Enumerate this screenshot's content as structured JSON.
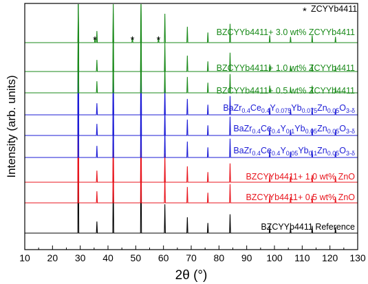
{
  "chart_data": {
    "type": "line",
    "xlabel": "2θ (°)",
    "ylabel": "Intensity (arb. units)",
    "xlim": [
      10,
      130
    ],
    "x_ticks": [
      10,
      20,
      30,
      40,
      50,
      60,
      70,
      80,
      90,
      100,
      110,
      120,
      130
    ],
    "grid": false,
    "legend": {
      "marker": "*",
      "text": "ZCYYb4411",
      "placement": "top-right"
    },
    "annotations": [
      {
        "text": "*",
        "x": 35.3
      },
      {
        "text": "*",
        "x": 48.8
      },
      {
        "text": "*",
        "x": 58.2
      }
    ],
    "peaks_2theta": [
      29.3,
      36.0,
      41.9,
      51.9,
      60.5,
      68.6,
      76.0,
      84.0,
      98.3,
      105.8,
      113.6,
      122.0
    ],
    "series": [
      {
        "name": "BZCYYb4411 Reference",
        "color": "#000000",
        "label_parts": [
          {
            "t": "BZCYYb4411 Reference"
          }
        ],
        "peak_heights": [
          1.0,
          0.08,
          0.4,
          0.62,
          0.2,
          0.11,
          0.07,
          0.13,
          0.05,
          0.04,
          0.05,
          0.04
        ]
      },
      {
        "name": "BZCYYb4411+ 0.5 wt% ZnO",
        "color": "#e8141c",
        "label_parts": [
          {
            "t": "BZCYYb4411+ 0.5 wt% ZnO"
          }
        ],
        "peak_heights": [
          1.0,
          0.08,
          0.4,
          0.62,
          0.2,
          0.11,
          0.07,
          0.13,
          0.05,
          0.04,
          0.05,
          0.04
        ]
      },
      {
        "name": "BZCYYb4411+ 1.0 wt% ZnO",
        "color": "#e8141c",
        "label_parts": [
          {
            "t": "BZCYYb4411+ 1.0 wt% ZnO"
          }
        ],
        "peak_heights": [
          1.0,
          0.08,
          0.4,
          0.62,
          0.2,
          0.11,
          0.07,
          0.13,
          0.05,
          0.04,
          0.05,
          0.04
        ]
      },
      {
        "name": "BaZr0.4Ce0.4Y0.05Yb0.1Zn0.05O3-δ",
        "color": "#1b1bd6",
        "label_parts": [
          {
            "t": "BaZr"
          },
          {
            "t": "0.4",
            "sub": true
          },
          {
            "t": "Ce"
          },
          {
            "t": "0.4",
            "sub": true
          },
          {
            "t": "Y"
          },
          {
            "t": "0.05",
            "sub": true
          },
          {
            "t": "Yb"
          },
          {
            "t": "0.1",
            "sub": true
          },
          {
            "t": "Zn"
          },
          {
            "t": "0.05",
            "sub": true
          },
          {
            "t": "O"
          },
          {
            "t": "3-δ",
            "sub": true
          }
        ],
        "peak_heights": [
          1.0,
          0.08,
          0.4,
          0.62,
          0.2,
          0.11,
          0.07,
          0.13,
          0.05,
          0.04,
          0.05,
          0.04
        ]
      },
      {
        "name": "BaZr0.4Ce0.4Y0.1Yb0.05Zn0.05O3-δ",
        "color": "#1b1bd6",
        "label_parts": [
          {
            "t": "BaZr"
          },
          {
            "t": "0.4",
            "sub": true
          },
          {
            "t": "Ce"
          },
          {
            "t": "0.4",
            "sub": true
          },
          {
            "t": "Y"
          },
          {
            "t": "0.1",
            "sub": true
          },
          {
            "t": "Yb"
          },
          {
            "t": "0.05",
            "sub": true
          },
          {
            "t": "Zn"
          },
          {
            "t": "0.05",
            "sub": true
          },
          {
            "t": "O"
          },
          {
            "t": "3-δ",
            "sub": true
          }
        ],
        "peak_heights": [
          1.0,
          0.08,
          0.4,
          0.62,
          0.2,
          0.11,
          0.07,
          0.13,
          0.05,
          0.04,
          0.05,
          0.04
        ]
      },
      {
        "name": "BaZr0.4Ce0.4Y0.075Yb0.075Zn0.05O3-δ",
        "color": "#1b1bd6",
        "label_parts": [
          {
            "t": "BaZr"
          },
          {
            "t": "0.4",
            "sub": true
          },
          {
            "t": "Ce"
          },
          {
            "t": "0.4",
            "sub": true
          },
          {
            "t": "Y"
          },
          {
            "t": "0.075",
            "sub": true
          },
          {
            "t": "Yb"
          },
          {
            "t": "0.075",
            "sub": true
          },
          {
            "t": "Zn"
          },
          {
            "t": "0.05",
            "sub": true
          },
          {
            "t": "O"
          },
          {
            "t": "3-δ",
            "sub": true
          }
        ],
        "peak_heights": [
          1.0,
          0.08,
          0.4,
          0.62,
          0.2,
          0.11,
          0.07,
          0.13,
          0.05,
          0.04,
          0.05,
          0.04
        ]
      },
      {
        "name": "BZCYYb4411+ 0.5 wt% ZCYYb4411",
        "color": "#1a8a1a",
        "label_parts": [
          {
            "t": "BZCYYb4411+ 0.5 wt% ZCYYb4411"
          }
        ],
        "peak_heights": [
          1.0,
          0.08,
          0.4,
          0.62,
          0.2,
          0.11,
          0.07,
          0.13,
          0.05,
          0.04,
          0.05,
          0.04
        ]
      },
      {
        "name": "BZCYYb4411+ 1.0 wt% ZCYYb4411",
        "color": "#1a8a1a",
        "label_parts": [
          {
            "t": "BZCYYb4411+ 1.0 wt% ZCYYb4411"
          }
        ],
        "peak_heights": [
          1.0,
          0.08,
          0.4,
          0.62,
          0.2,
          0.11,
          0.07,
          0.13,
          0.05,
          0.04,
          0.05,
          0.04
        ]
      },
      {
        "name": "BZCYYb4411+ 3.0 wt% ZCYYb4411",
        "color": "#1a8a1a",
        "label_parts": [
          {
            "t": "BZCYYb4411+ 3.0 wt% ZCYYb4411"
          }
        ],
        "peak_heights": [
          1.0,
          0.08,
          0.4,
          0.62,
          0.2,
          0.11,
          0.07,
          0.13,
          0.05,
          0.04,
          0.05,
          0.04
        ],
        "extra_peaks": [
          {
            "x": 35.3,
            "h": 0.04
          },
          {
            "x": 48.8,
            "h": 0.04
          },
          {
            "x": 58.2,
            "h": 0.04
          }
        ]
      }
    ]
  }
}
